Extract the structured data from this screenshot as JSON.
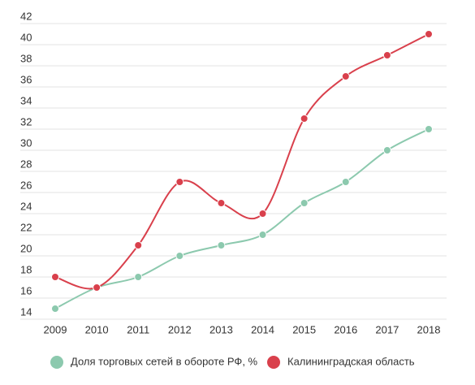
{
  "chart_data": {
    "type": "line",
    "categories": [
      "2009",
      "2010",
      "2011",
      "2012",
      "2013",
      "2014",
      "2015",
      "2016",
      "2017",
      "2018"
    ],
    "series": [
      {
        "name": "Доля торговых сетей в обороте РФ, %",
        "color": "#8cc9ae",
        "values": [
          15,
          17,
          18,
          20,
          21,
          22,
          25,
          27,
          30,
          32
        ]
      },
      {
        "name": "Калининградская область",
        "color": "#d9404c",
        "values": [
          18,
          17,
          21,
          27,
          25,
          24,
          33,
          37,
          39,
          41
        ]
      }
    ],
    "ylim": [
      14,
      42
    ],
    "yticks": [
      14,
      16,
      18,
      20,
      22,
      24,
      26,
      28,
      30,
      32,
      34,
      36,
      38,
      40,
      42
    ],
    "grid": true,
    "legend": "bottom"
  }
}
